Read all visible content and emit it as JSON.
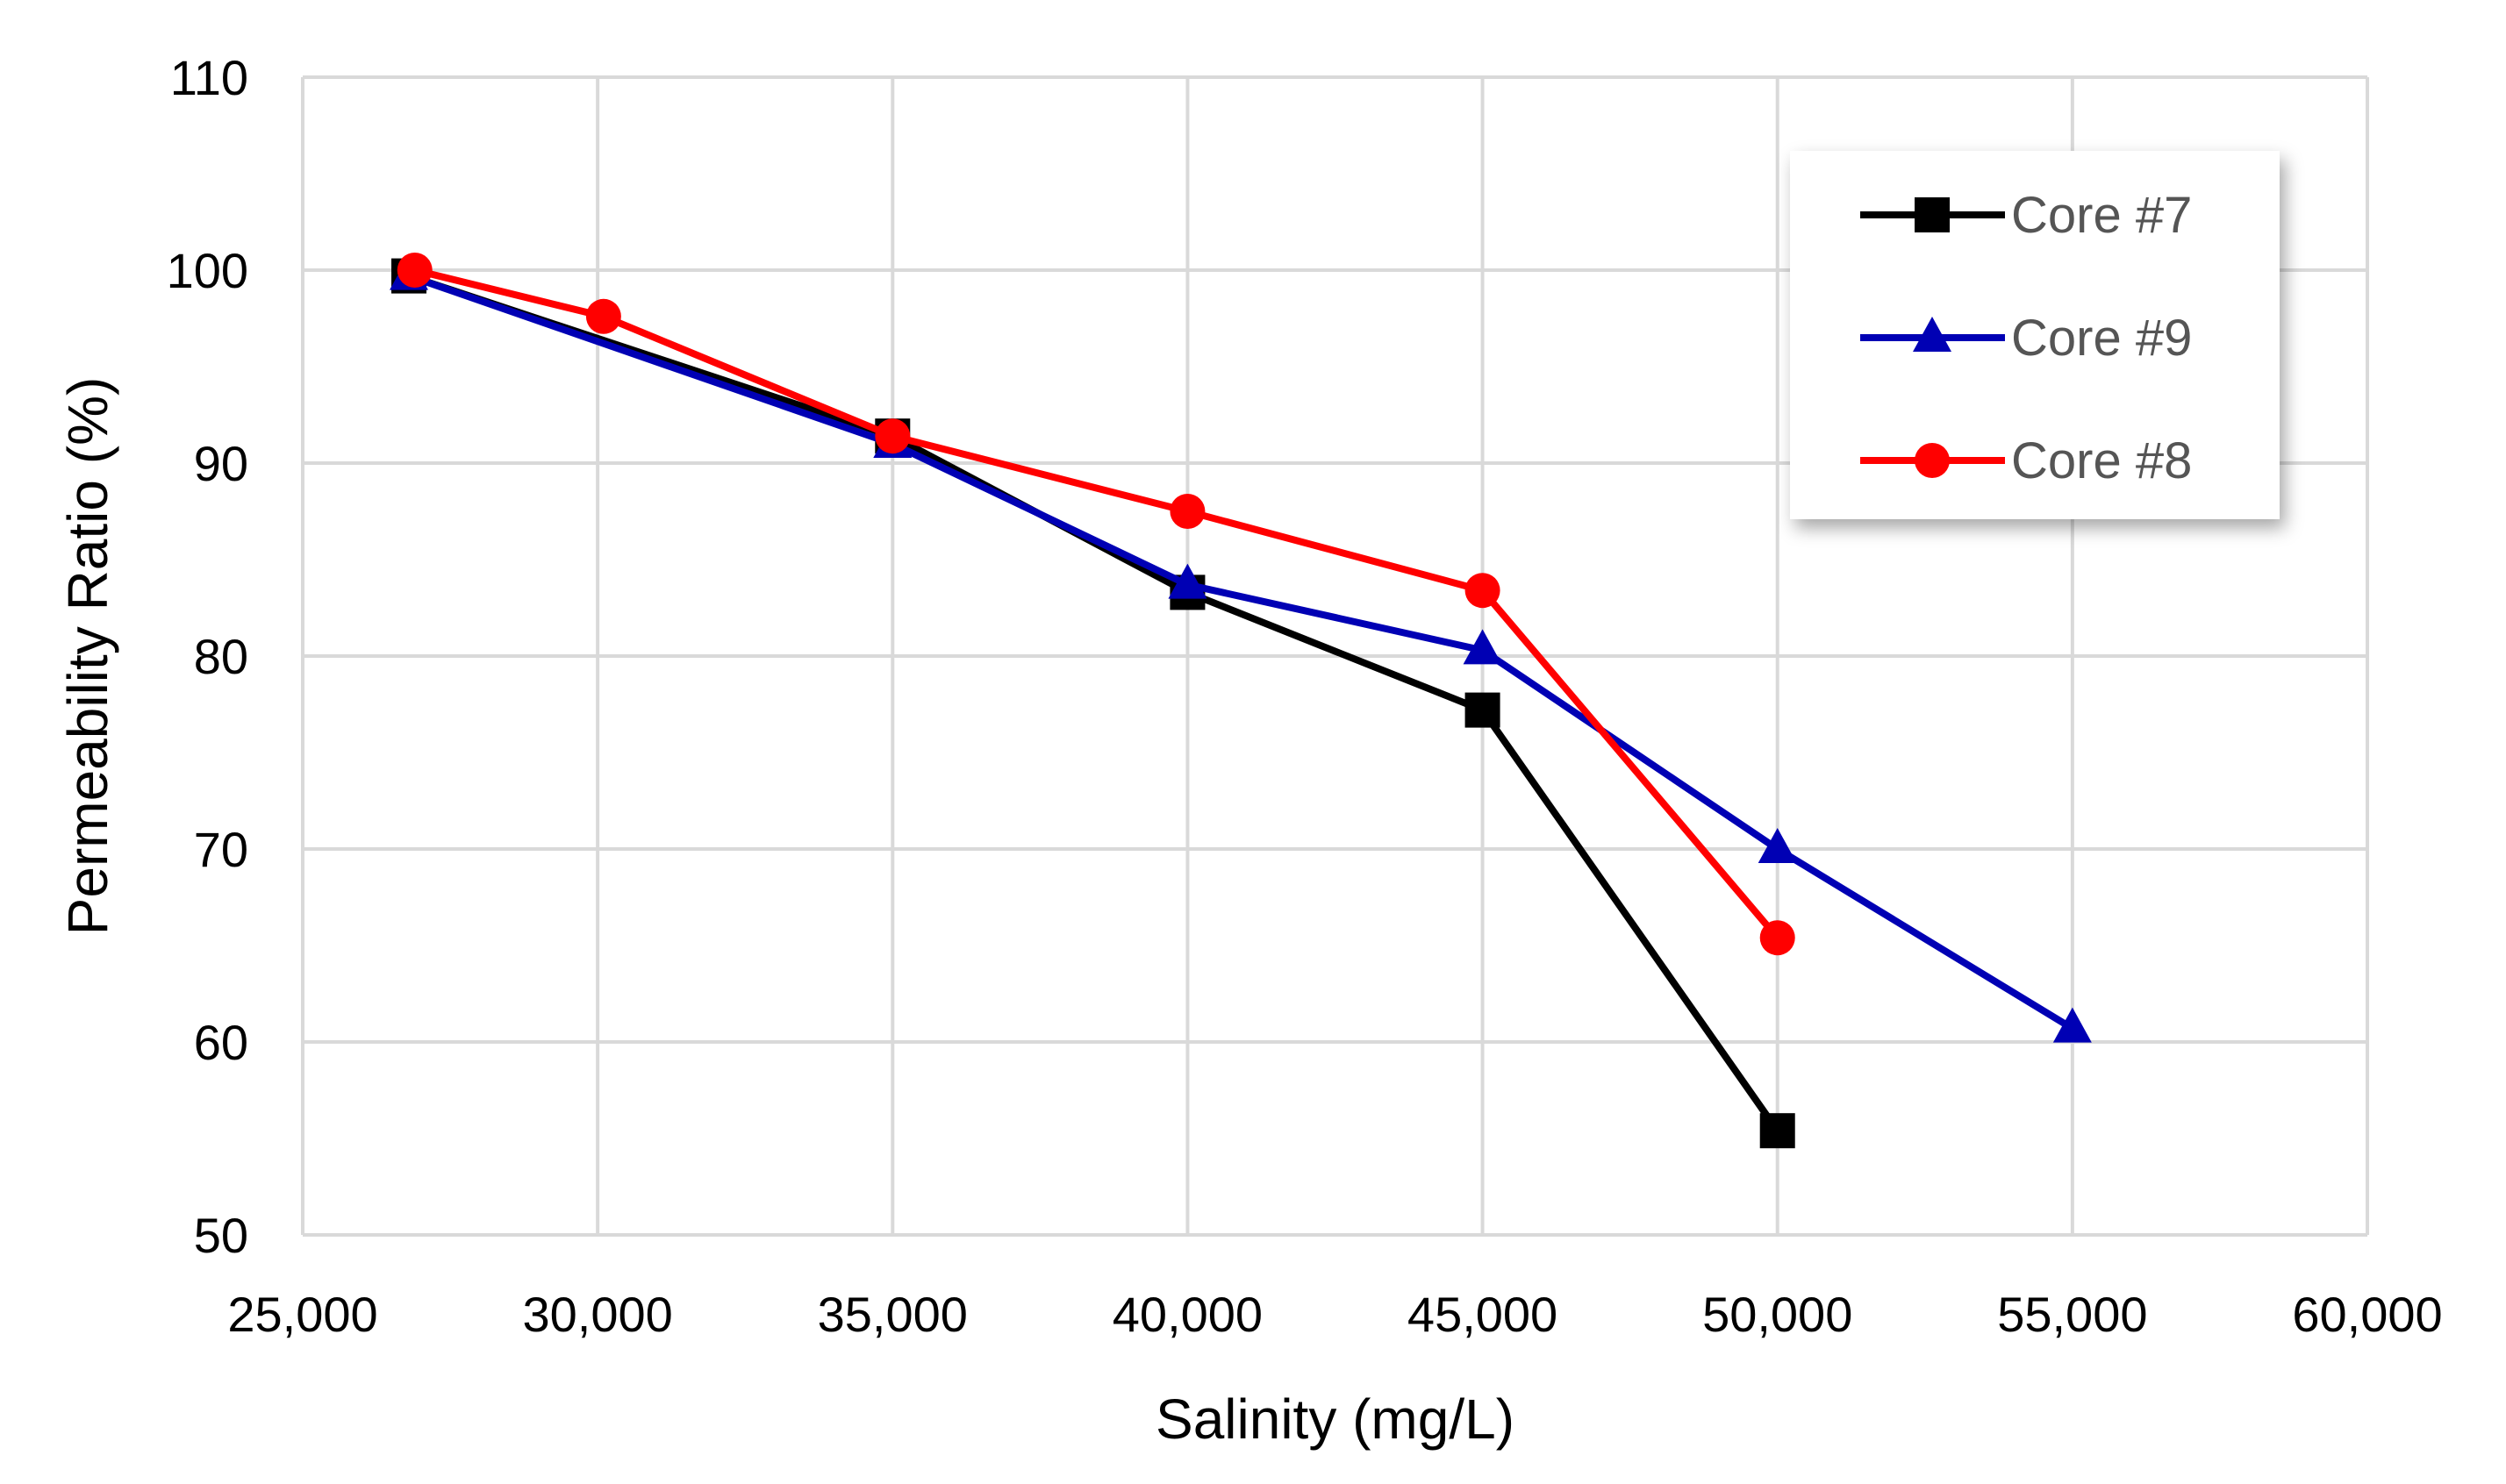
{
  "chart_data": {
    "type": "line",
    "title": "",
    "xlabel": "Salinity (mg/L)",
    "ylabel": "Permeability Ratio (%)",
    "xlim": [
      25000,
      60000
    ],
    "ylim": [
      50,
      110
    ],
    "xticks": [
      25000,
      30000,
      35000,
      40000,
      45000,
      50000,
      55000,
      60000
    ],
    "xtick_labels": [
      "25,000",
      "30,000",
      "35,000",
      "40,000",
      "45,000",
      "50,000",
      "55,000",
      "60,000"
    ],
    "yticks": [
      50,
      60,
      70,
      80,
      90,
      100,
      110
    ],
    "ytick_labels": [
      "50",
      "60",
      "70",
      "80",
      "90",
      "100",
      "110"
    ],
    "grid": true,
    "legend_position": "top-right",
    "series": [
      {
        "name": "Core #7",
        "color": "#000000",
        "marker": "square",
        "x": [
          26800,
          35000,
          40000,
          45000,
          50000
        ],
        "y": [
          99.7,
          91.4,
          83.3,
          77.2,
          55.4
        ]
      },
      {
        "name": "Core #9",
        "color": "#0000B4",
        "marker": "triangle",
        "x": [
          26800,
          35000,
          40000,
          45000,
          50000,
          55000
        ],
        "y": [
          99.7,
          91.0,
          83.7,
          80.3,
          70.0,
          60.7
        ]
      },
      {
        "name": "Core #8",
        "color": "#FF0000",
        "marker": "circle",
        "x": [
          26900,
          30100,
          35000,
          40000,
          45000,
          50000
        ],
        "y": [
          100.0,
          97.6,
          91.4,
          87.5,
          83.4,
          65.4
        ]
      }
    ],
    "legend_order": [
      0,
      1,
      2
    ]
  }
}
